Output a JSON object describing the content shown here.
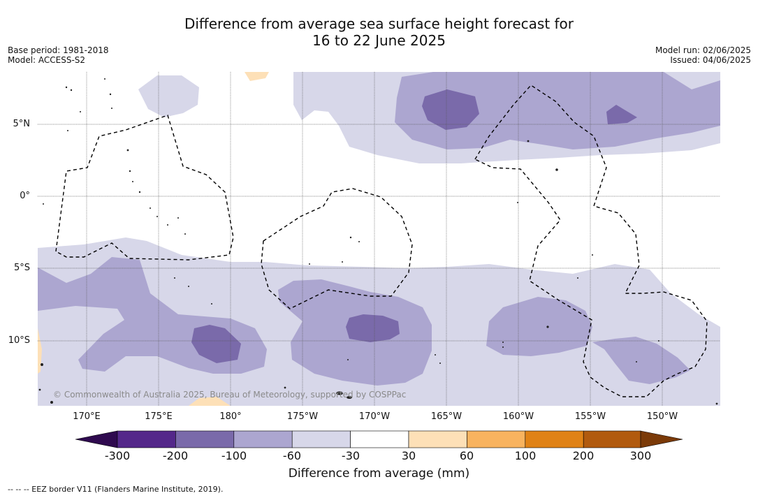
{
  "title": {
    "line1": "Difference from average sea surface height forecast for",
    "line2": "16 to 22 June 2025"
  },
  "meta_left": {
    "base_period": "Base period: 1981-2018",
    "model": "Model: ACCESS-S2"
  },
  "meta_right": {
    "model_run": "Model run: 02/06/2025",
    "issued": "Issued: 04/06/2025"
  },
  "latitude_labels": [
    "5°N",
    "0°",
    "5°S",
    "10°S"
  ],
  "longitude_labels": [
    "170°E",
    "175°E",
    "180°",
    "175°W",
    "170°W",
    "165°W",
    "160°W",
    "155°W",
    "150°W"
  ],
  "colorbar": {
    "ticks": [
      "-300",
      "-200",
      "-100",
      "-60",
      "-30",
      "30",
      "60",
      "100",
      "200",
      "300"
    ],
    "colors": [
      "#2f0a4f",
      "#54288a",
      "#7a6aaa",
      "#aca6d0",
      "#d7d7e9",
      "#ffffff",
      "#fde0b7",
      "#f8b35f",
      "#e08216",
      "#b15a0e",
      "#7b3a08"
    ],
    "label": "Difference from average (mm)"
  },
  "copyright": "© Commonwealth of Australia 2025, Bureau of Meteorology, supported by COSPPac",
  "footer": "-- -- -- EEZ border V11 (Flanders Marine Institute, 2019)."
}
